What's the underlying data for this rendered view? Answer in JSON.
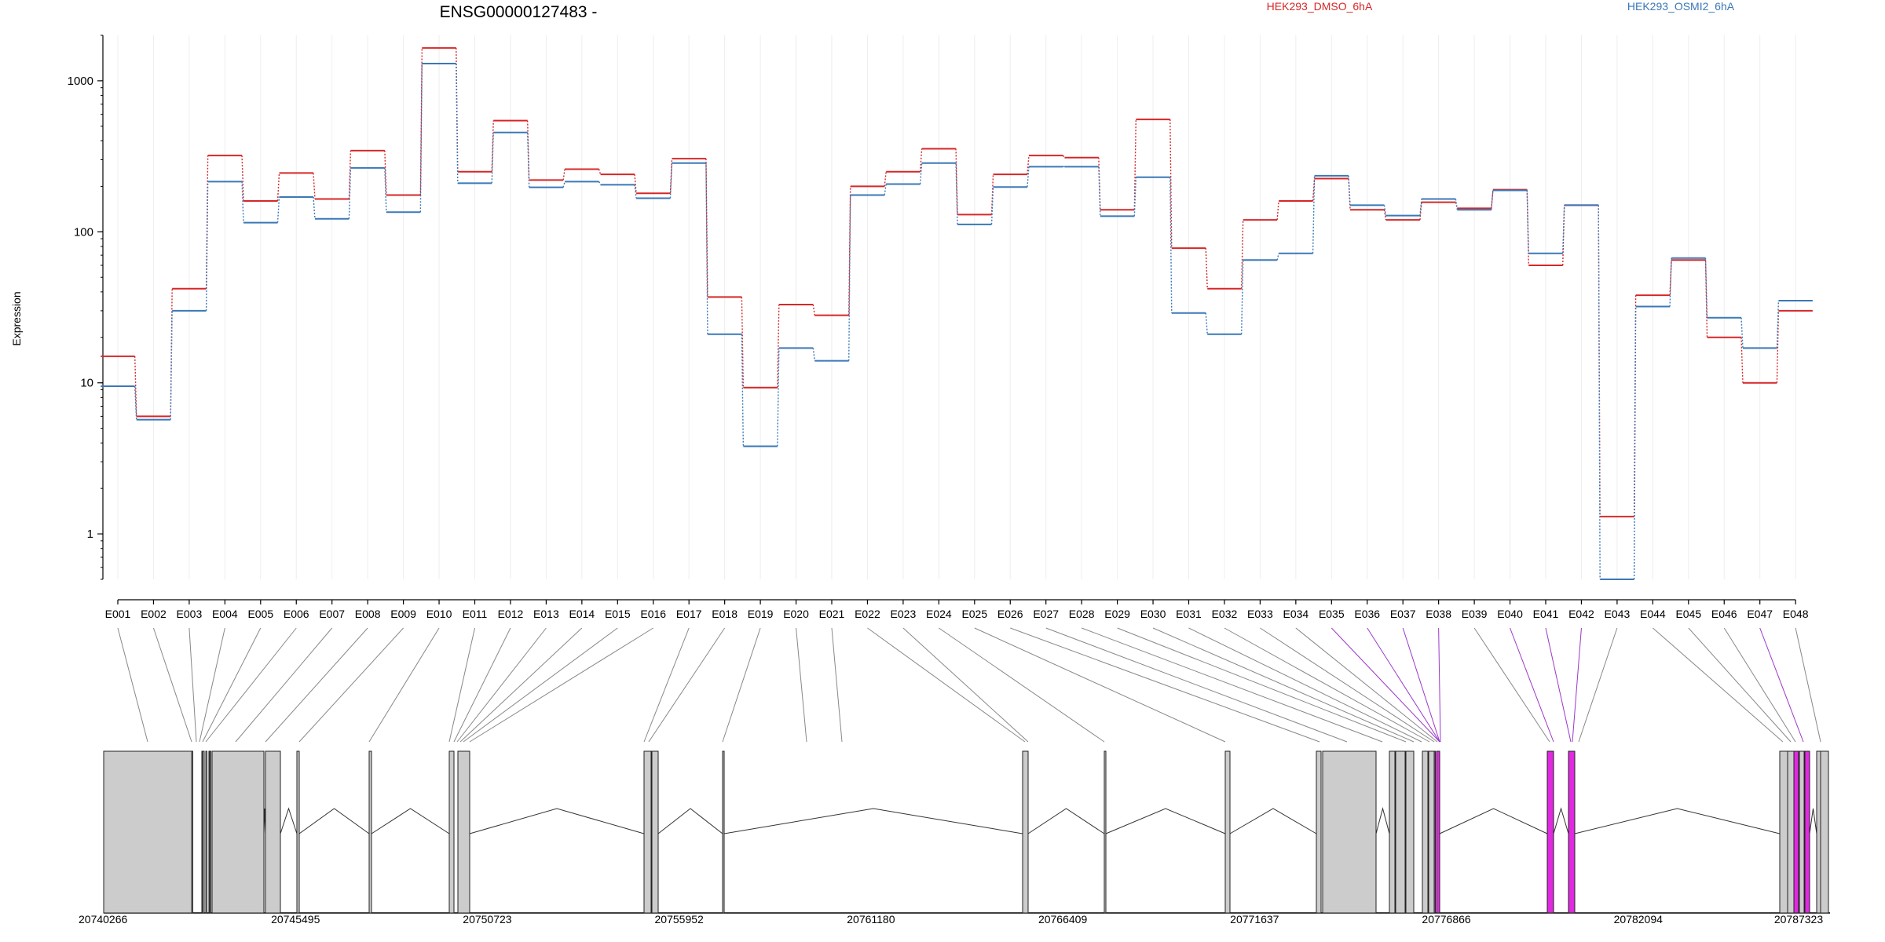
{
  "chart_data": {
    "type": "line",
    "title": "ENSG00000127483 -",
    "ylabel": "Expression",
    "xlabel": "",
    "yscale": "log",
    "ylim": [
      0.5,
      2000
    ],
    "yticks": [
      1,
      10,
      100,
      1000
    ],
    "grid": "vertical",
    "legend_position": "top",
    "colors": {
      "HEK293_DMSO_6hA": "#d62728",
      "HEK293_OSMI2_6hA": "#3a78b7",
      "highlight": "#e029e0",
      "exon": "#cccccc"
    },
    "categories": [
      "E001",
      "E002",
      "E003",
      "E004",
      "E005",
      "E006",
      "E007",
      "E008",
      "E009",
      "E010",
      "E011",
      "E012",
      "E013",
      "E014",
      "E015",
      "E016",
      "E017",
      "E018",
      "E019",
      "E020",
      "E021",
      "E022",
      "E023",
      "E024",
      "E025",
      "E026",
      "E027",
      "E028",
      "E029",
      "E030",
      "E031",
      "E032",
      "E033",
      "E034",
      "E035",
      "E036",
      "E037",
      "E038",
      "E039",
      "E040",
      "E041",
      "E042",
      "E043",
      "E044",
      "E045",
      "E046",
      "E047",
      "E048"
    ],
    "series": [
      {
        "name": "HEK293_DMSO_6hA",
        "color": "#d62728",
        "values": [
          15,
          6,
          42,
          320,
          160,
          245,
          165,
          345,
          175,
          1650,
          250,
          545,
          220,
          260,
          240,
          180,
          305,
          37,
          9.3,
          33,
          28,
          200,
          250,
          355,
          130,
          240,
          320,
          310,
          140,
          555,
          78,
          42,
          120,
          160,
          225,
          140,
          120,
          157,
          143,
          190,
          60,
          150,
          1.3,
          38,
          65,
          20,
          10,
          30
        ]
      },
      {
        "name": "HEK293_OSMI2_6hA",
        "color": "#3a78b7",
        "values": [
          9.5,
          5.7,
          30,
          215,
          115,
          170,
          122,
          265,
          135,
          1300,
          210,
          455,
          197,
          215,
          205,
          167,
          285,
          21,
          3.8,
          17,
          14,
          175,
          207,
          285,
          112,
          198,
          270,
          270,
          127,
          230,
          29,
          21,
          65,
          72,
          235,
          150,
          128,
          165,
          140,
          188,
          72,
          150,
          0.5,
          32,
          67,
          27,
          17,
          35
        ]
      }
    ],
    "gene_model": {
      "coordinate_ticks": [
        "20740266",
        "20745495",
        "20750723",
        "20755952",
        "20761180",
        "20766409",
        "20771637",
        "20776866",
        "20782094",
        "20787323"
      ],
      "highlighted_exons": [
        "E038",
        "E041",
        "E042",
        "E047"
      ]
    }
  }
}
